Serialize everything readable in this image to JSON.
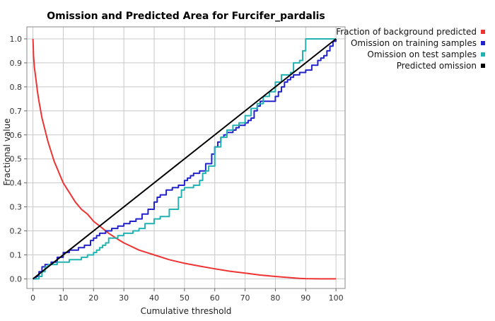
{
  "colors": {
    "background_series": "#ee3333",
    "omission_training": "#2222cc",
    "omission_test": "#22b2b2",
    "predicted_omission": "#000000",
    "grid": "#c8c8c8",
    "plot_bg": "#ffffff"
  },
  "chart_data": {
    "type": "line",
    "title": "Omission and Predicted Area for Furcifer_pardalis",
    "xlabel": "Cumulative threshold",
    "ylabel": "Fractional value",
    "xlim": [
      -2,
      103
    ],
    "ylim": [
      -0.04,
      1.05
    ],
    "xticks": [
      "0",
      "10",
      "20",
      "30",
      "40",
      "50",
      "60",
      "70",
      "80",
      "90",
      "100"
    ],
    "yticks": [
      "0.0",
      "0.1",
      "0.2",
      "0.3",
      "0.4",
      "0.5",
      "0.6",
      "0.7",
      "0.8",
      "0.9",
      "1.0"
    ],
    "grid": true,
    "legend_position": "outside-top-right",
    "series": [
      {
        "name": "Fraction of background predicted",
        "color": "#ee3333",
        "step": false,
        "x": [
          0,
          0.1,
          0.2,
          0.5,
          1,
          1.5,
          2,
          3,
          4,
          5,
          6,
          7,
          8,
          9,
          10,
          12,
          14,
          16,
          18,
          20,
          22,
          25,
          28,
          30,
          35,
          40,
          45,
          50,
          55,
          60,
          65,
          70,
          75,
          80,
          85,
          88,
          90,
          95,
          100
        ],
        "y": [
          1.0,
          0.97,
          0.93,
          0.88,
          0.83,
          0.78,
          0.74,
          0.67,
          0.62,
          0.57,
          0.53,
          0.49,
          0.46,
          0.43,
          0.4,
          0.36,
          0.32,
          0.29,
          0.27,
          0.24,
          0.22,
          0.19,
          0.165,
          0.15,
          0.12,
          0.1,
          0.08,
          0.065,
          0.053,
          0.042,
          0.032,
          0.024,
          0.016,
          0.01,
          0.005,
          0.002,
          0.001,
          0.0,
          0.0
        ]
      },
      {
        "name": "Omission on training samples",
        "color": "#2222cc",
        "step": true,
        "x": [
          0,
          1,
          2,
          3,
          4,
          6,
          8,
          10,
          12,
          15,
          17,
          19,
          20,
          21,
          22,
          24,
          26,
          28,
          30,
          32,
          34,
          36,
          38,
          40,
          41,
          42,
          44,
          46,
          48,
          50,
          51,
          52,
          53,
          55,
          57,
          59,
          60,
          61,
          62,
          63,
          64,
          66,
          67,
          68,
          70,
          71,
          72,
          73,
          74,
          75,
          76,
          77,
          78,
          80,
          81,
          82,
          83,
          84,
          85,
          86,
          87,
          88,
          90,
          92,
          94,
          95,
          96,
          97,
          98,
          99,
          100
        ],
        "y": [
          0.0,
          0.01,
          0.03,
          0.05,
          0.06,
          0.07,
          0.09,
          0.11,
          0.12,
          0.13,
          0.14,
          0.16,
          0.17,
          0.18,
          0.19,
          0.2,
          0.21,
          0.22,
          0.23,
          0.24,
          0.25,
          0.27,
          0.29,
          0.32,
          0.34,
          0.35,
          0.37,
          0.38,
          0.39,
          0.41,
          0.42,
          0.43,
          0.44,
          0.45,
          0.48,
          0.52,
          0.55,
          0.57,
          0.59,
          0.6,
          0.61,
          0.62,
          0.63,
          0.64,
          0.65,
          0.66,
          0.67,
          0.7,
          0.72,
          0.74,
          0.74,
          0.74,
          0.74,
          0.76,
          0.78,
          0.8,
          0.82,
          0.83,
          0.84,
          0.85,
          0.85,
          0.86,
          0.87,
          0.89,
          0.91,
          0.92,
          0.93,
          0.95,
          0.97,
          0.99,
          1.0
        ]
      },
      {
        "name": "Omission on test samples",
        "color": "#22b2b2",
        "step": true,
        "x": [
          0,
          2,
          3,
          4,
          5,
          8,
          12,
          16,
          18,
          20,
          21,
          22,
          23,
          24,
          25,
          28,
          30,
          33,
          35,
          37,
          40,
          42,
          45,
          48,
          49,
          50,
          53,
          55,
          56,
          57,
          58,
          60,
          62,
          64,
          66,
          68,
          70,
          72,
          74,
          76,
          78,
          80,
          82,
          84,
          85,
          86,
          88,
          89,
          90,
          91,
          92,
          95,
          98,
          100
        ],
        "y": [
          0.0,
          0.01,
          0.03,
          0.05,
          0.06,
          0.07,
          0.08,
          0.09,
          0.1,
          0.11,
          0.12,
          0.13,
          0.14,
          0.15,
          0.17,
          0.18,
          0.19,
          0.2,
          0.21,
          0.23,
          0.25,
          0.26,
          0.29,
          0.34,
          0.37,
          0.38,
          0.39,
          0.41,
          0.44,
          0.45,
          0.47,
          0.55,
          0.59,
          0.62,
          0.64,
          0.65,
          0.68,
          0.71,
          0.73,
          0.76,
          0.78,
          0.82,
          0.85,
          0.85,
          0.86,
          0.9,
          0.91,
          0.95,
          1.0,
          1.0,
          1.0,
          1.0,
          1.0,
          1.0
        ]
      },
      {
        "name": "Predicted omission",
        "color": "#000000",
        "step": false,
        "x": [
          0,
          100
        ],
        "y": [
          0.0,
          1.0
        ]
      }
    ]
  }
}
